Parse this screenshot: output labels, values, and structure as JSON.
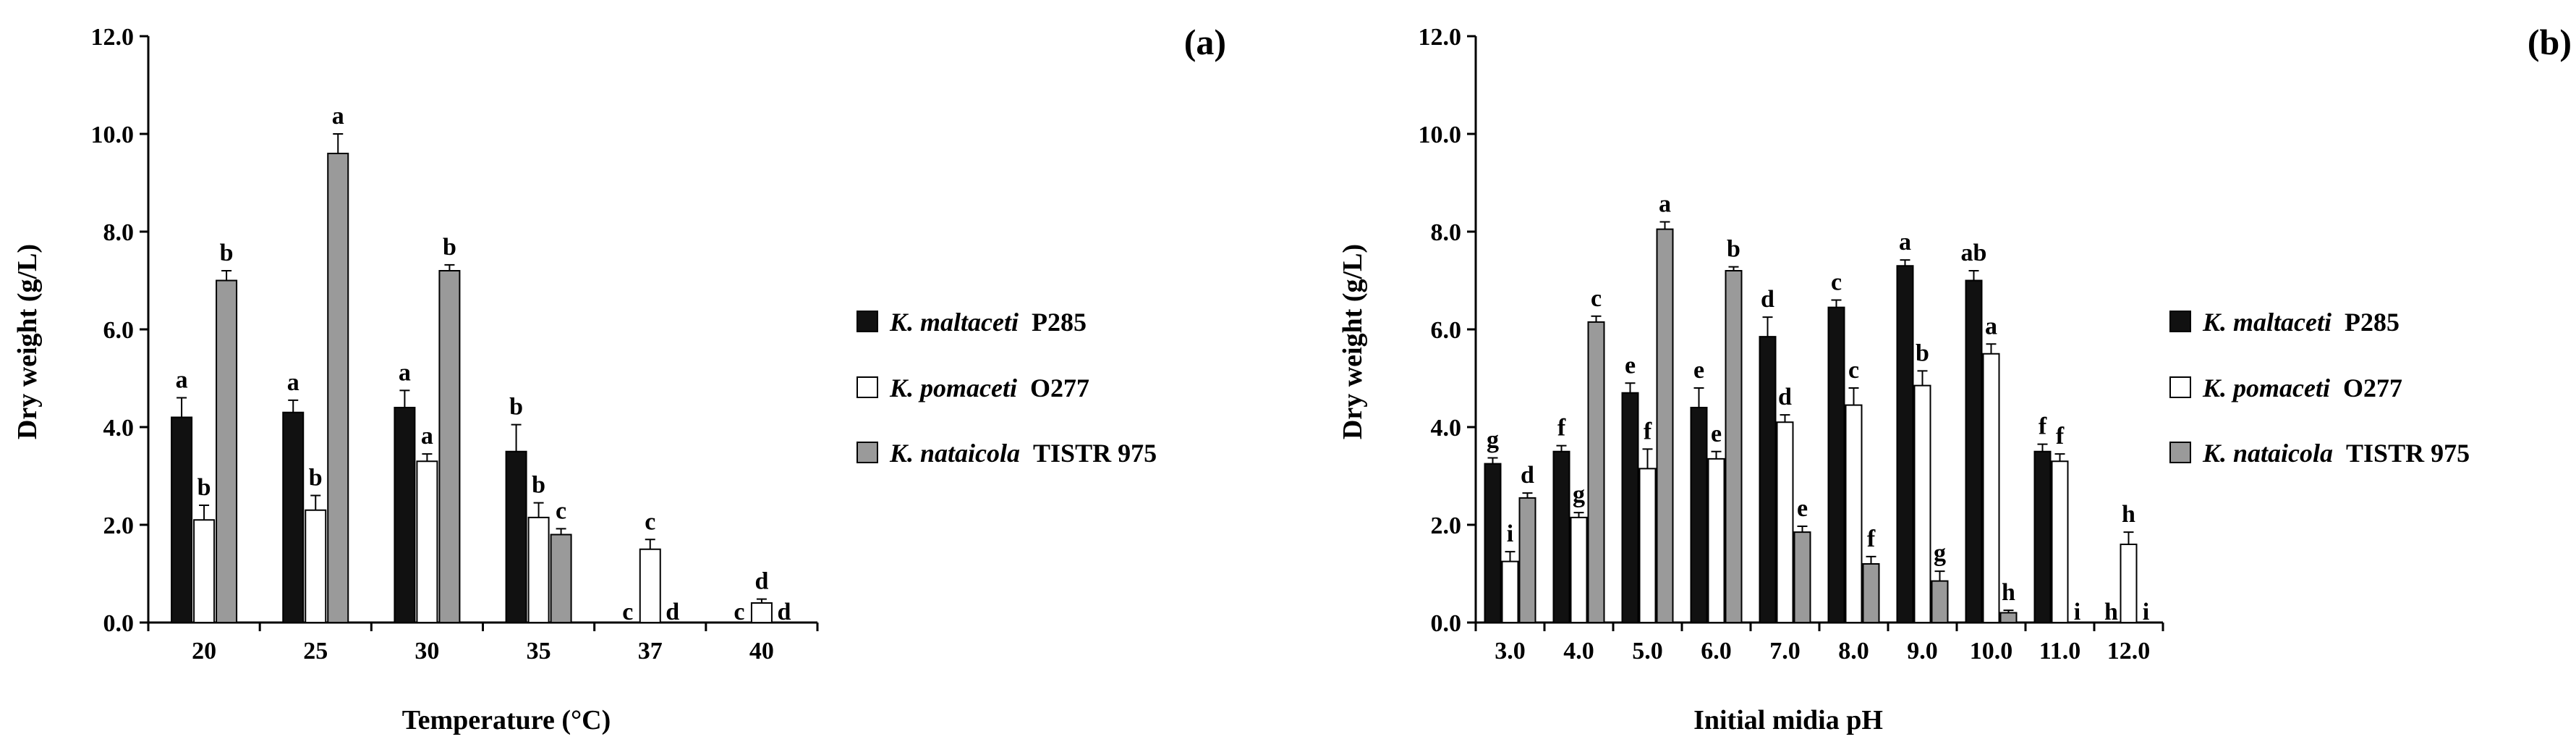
{
  "legend": [
    {
      "species": "K. maltaceti",
      "strain": "P285",
      "color": "#111111"
    },
    {
      "species": "K. pomaceti",
      "strain": "O277",
      "color": "#ffffff"
    },
    {
      "species": "K. nataicola",
      "strain": "TISTR 975",
      "color": "#9a9a9a"
    }
  ],
  "chart_data": [
    {
      "type": "bar",
      "panel_label": "(a)",
      "xlabel": "Temperature (°C)",
      "ylabel": "Dry weight (g/L)",
      "ylim": [
        0,
        12
      ],
      "yticks": [
        "0.0",
        "2.0",
        "4.0",
        "6.0",
        "8.0",
        "10.0",
        "12.0"
      ],
      "categories": [
        "20",
        "25",
        "30",
        "35",
        "37",
        "40"
      ],
      "series": [
        {
          "name": "K. maltaceti P285",
          "color": "#111111",
          "values": [
            4.2,
            4.3,
            4.4,
            3.5,
            0,
            0
          ],
          "errors": [
            0.4,
            0.25,
            0.35,
            0.55,
            0,
            0
          ],
          "letters": [
            "a",
            "a",
            "a",
            "b",
            "c",
            "c"
          ]
        },
        {
          "name": "K. pomaceti O277",
          "color": "#ffffff",
          "values": [
            2.1,
            2.3,
            3.3,
            2.15,
            1.5,
            0.4
          ],
          "errors": [
            0.3,
            0.3,
            0.15,
            0.3,
            0.2,
            0.08
          ],
          "letters": [
            "b",
            "b",
            "a",
            "b",
            "c",
            "d"
          ]
        },
        {
          "name": "K. nataicola TISTR 975",
          "color": "#9a9a9a",
          "values": [
            7.0,
            9.6,
            7.2,
            1.8,
            0,
            0
          ],
          "errors": [
            0.2,
            0.4,
            0.12,
            0.12,
            0,
            0
          ],
          "letters": [
            "b",
            "a",
            "b",
            "c",
            "d",
            "d"
          ]
        }
      ]
    },
    {
      "type": "bar",
      "panel_label": "(b)",
      "xlabel": "Initial midia pH",
      "ylabel": "Dry weight (g/L)",
      "ylim": [
        0,
        12
      ],
      "yticks": [
        "0.0",
        "2.0",
        "4.0",
        "6.0",
        "8.0",
        "10.0",
        "12.0"
      ],
      "categories": [
        "3.0",
        "4.0",
        "5.0",
        "6.0",
        "7.0",
        "8.0",
        "9.0",
        "10.0",
        "11.0",
        "12.0"
      ],
      "series": [
        {
          "name": "K. maltaceti P285",
          "color": "#111111",
          "values": [
            3.25,
            3.5,
            4.7,
            4.4,
            5.85,
            6.45,
            7.3,
            7.0,
            3.5,
            0
          ],
          "errors": [
            0.12,
            0.12,
            0.2,
            0.4,
            0.4,
            0.15,
            0.12,
            0.2,
            0.15,
            0
          ],
          "letters": [
            "g",
            "f",
            "e",
            "e",
            "d",
            "c",
            "a",
            "ab",
            "f",
            "h"
          ]
        },
        {
          "name": "K. pomaceti O277",
          "color": "#ffffff",
          "values": [
            1.25,
            2.15,
            3.15,
            3.35,
            4.1,
            4.45,
            4.85,
            5.5,
            3.3,
            1.6
          ],
          "errors": [
            0.2,
            0.1,
            0.4,
            0.15,
            0.15,
            0.35,
            0.3,
            0.2,
            0.15,
            0.25
          ],
          "letters": [
            "i",
            "g",
            "f",
            "e",
            "d",
            "c",
            "b",
            "a",
            "f",
            "h"
          ]
        },
        {
          "name": "K. nataicola TISTR 975",
          "color": "#9a9a9a",
          "values": [
            2.55,
            6.15,
            8.05,
            7.2,
            1.85,
            1.2,
            0.85,
            0.2,
            0,
            0
          ],
          "errors": [
            0.1,
            0.12,
            0.15,
            0.08,
            0.12,
            0.15,
            0.2,
            0.05,
            0,
            0
          ],
          "letters": [
            "d",
            "c",
            "a",
            "b",
            "e",
            "f",
            "g",
            "h",
            "i",
            "i"
          ]
        }
      ]
    }
  ]
}
